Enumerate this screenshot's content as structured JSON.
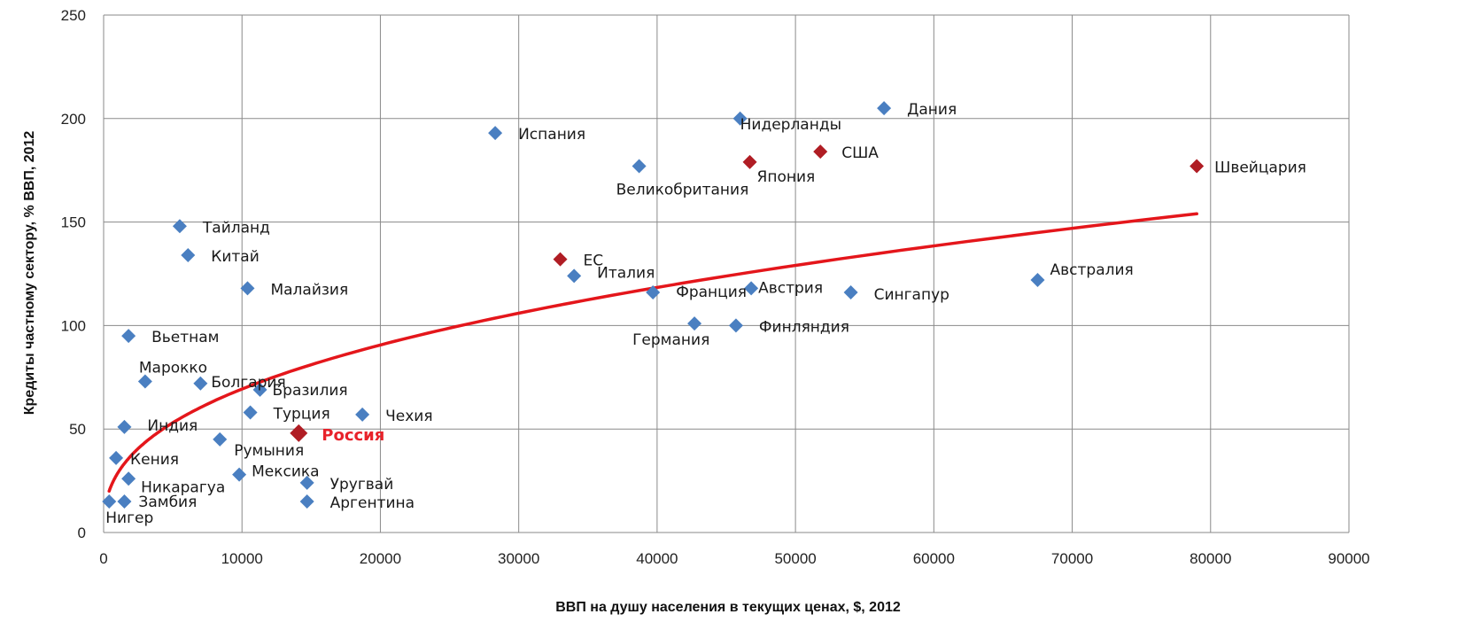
{
  "chart_data": {
    "type": "scatter",
    "title": "",
    "xlabel": "ВВП на душу населения в текущих ценах, $, 2012",
    "ylabel": "Кредиты частному сектору, % ВВП, 2012",
    "xlim": [
      0,
      90000
    ],
    "ylim": [
      0,
      250
    ],
    "x_ticks": [
      "0",
      "10000",
      "20000",
      "30000",
      "40000",
      "50000",
      "60000",
      "70000",
      "80000",
      "90000"
    ],
    "y_ticks": [
      "0",
      "50",
      "100",
      "150",
      "200",
      "250"
    ],
    "grid": true,
    "colors": {
      "blue": "#4a7fc1",
      "red": "#b01d24",
      "trend": "#e4161b",
      "highlight_label": "#e8222a"
    },
    "points": [
      {
        "label": "Нигер",
        "x": 400,
        "y": 15,
        "color": "blue"
      },
      {
        "label": "Замбия",
        "x": 1500,
        "y": 15,
        "color": "blue"
      },
      {
        "label": "Никарагуа",
        "x": 1800,
        "y": 26,
        "color": "blue"
      },
      {
        "label": "Кения",
        "x": 900,
        "y": 36,
        "color": "blue"
      },
      {
        "label": "Индия",
        "x": 1500,
        "y": 51,
        "color": "blue"
      },
      {
        "label": "Марокко",
        "x": 3000,
        "y": 73,
        "color": "blue"
      },
      {
        "label": "Вьетнам",
        "x": 1800,
        "y": 95,
        "color": "blue"
      },
      {
        "label": "Болгария",
        "x": 7000,
        "y": 72,
        "color": "blue"
      },
      {
        "label": "Бразилия",
        "x": 11300,
        "y": 69,
        "color": "blue"
      },
      {
        "label": "Турция",
        "x": 10600,
        "y": 58,
        "color": "blue"
      },
      {
        "label": "Румыния",
        "x": 8400,
        "y": 45,
        "color": "blue"
      },
      {
        "label": "Мексика",
        "x": 9800,
        "y": 28,
        "color": "blue"
      },
      {
        "label": "Уругвай",
        "x": 14700,
        "y": 24,
        "color": "blue"
      },
      {
        "label": "Аргентина",
        "x": 14700,
        "y": 15,
        "color": "blue"
      },
      {
        "label": "Чехия",
        "x": 18700,
        "y": 57,
        "color": "blue"
      },
      {
        "label": "Россия",
        "x": 14100,
        "y": 48,
        "color": "red"
      },
      {
        "label": "Тайланд",
        "x": 5500,
        "y": 148,
        "color": "blue"
      },
      {
        "label": "Китай",
        "x": 6100,
        "y": 134,
        "color": "blue"
      },
      {
        "label": "Малайзия",
        "x": 10400,
        "y": 118,
        "color": "blue"
      },
      {
        "label": "Испания",
        "x": 28300,
        "y": 193,
        "color": "blue"
      },
      {
        "label": "ЕС",
        "x": 33000,
        "y": 132,
        "color": "red"
      },
      {
        "label": "Италия",
        "x": 34000,
        "y": 124,
        "color": "blue"
      },
      {
        "label": "Великобритания",
        "x": 38700,
        "y": 177,
        "color": "blue"
      },
      {
        "label": "Франция",
        "x": 39700,
        "y": 116,
        "color": "blue"
      },
      {
        "label": "Германия",
        "x": 42700,
        "y": 101,
        "color": "blue"
      },
      {
        "label": "Финляндия",
        "x": 45700,
        "y": 100,
        "color": "blue"
      },
      {
        "label": "Австрия",
        "x": 46800,
        "y": 118,
        "color": "blue"
      },
      {
        "label": "Нидерланды",
        "x": 46000,
        "y": 200,
        "color": "blue"
      },
      {
        "label": "Япония",
        "x": 46700,
        "y": 179,
        "color": "red"
      },
      {
        "label": "США",
        "x": 51800,
        "y": 184,
        "color": "red"
      },
      {
        "label": "Дания",
        "x": 56400,
        "y": 205,
        "color": "blue"
      },
      {
        "label": "Сингапур",
        "x": 54000,
        "y": 116,
        "color": "blue"
      },
      {
        "label": "Австралия",
        "x": 67500,
        "y": 122,
        "color": "blue"
      },
      {
        "label": "Швейцария",
        "x": 79000,
        "y": 177,
        "color": "red"
      }
    ],
    "trendline": {
      "type": "power",
      "x_from": 400,
      "x_to": 79000
    }
  }
}
